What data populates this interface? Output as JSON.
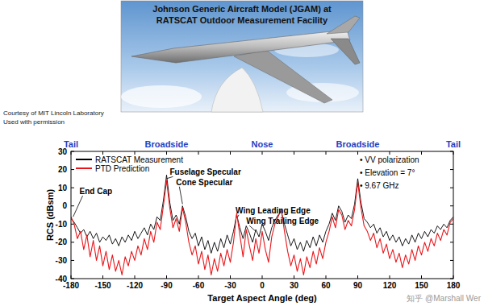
{
  "header": {
    "photo_title": [
      "Johnson Generic Aircraft Model (JGAM) at",
      "RATSCAT Outdoor Measurement Facility"
    ],
    "credit": [
      "Courtesy of MIT Lincoln Laboratory",
      "Used with permission"
    ],
    "watermark": "知乎 @Marshall Wer"
  },
  "chart_data": {
    "type": "line",
    "x_label": "Target Aspect Angle (deg)",
    "y_label": "RCS (dBsm)",
    "xlim": [
      -180,
      180
    ],
    "xticks": [
      -180,
      -150,
      -120,
      -90,
      -60,
      -30,
      0,
      30,
      60,
      90,
      120,
      150,
      180
    ],
    "ylim": [
      -40,
      30
    ],
    "yticks": [
      -40,
      -30,
      -20,
      -10,
      0,
      10,
      20,
      30
    ],
    "grid": false,
    "legend": "upper left",
    "aspect_labels": [
      {
        "x": -180,
        "text": "Tail"
      },
      {
        "x": -90,
        "text": "Broadside"
      },
      {
        "x": 0,
        "text": "Nose"
      },
      {
        "x": 90,
        "text": "Broadside"
      },
      {
        "x": 180,
        "text": "Tail"
      }
    ],
    "notes": [
      "• VV polarization",
      "• Elevation = 7°",
      "• 9.67 GHz"
    ],
    "annotations": [
      {
        "text": "End Cap",
        "x": -172,
        "y": 6.5,
        "arrow_x": -178,
        "arrow_y": -6
      },
      {
        "text": "Fuselage Specular",
        "x": -87,
        "y": 17,
        "arrow_x": -90,
        "arrow_y": 15
      },
      {
        "text": "Cone Specular",
        "x": -81,
        "y": 11.5,
        "arrow_x": -75,
        "arrow_y": 1
      },
      {
        "text": "Wing Leading Edge",
        "x": -25,
        "y": -4,
        "arrow_x": -23,
        "arrow_y": -6
      },
      {
        "text": "Wing Trailing Edge",
        "x": -15,
        "y": -10,
        "arrow_x": -6,
        "arrow_y": -14
      }
    ],
    "x": [
      -180,
      -177,
      -174,
      -171,
      -168,
      -165,
      -162,
      -159,
      -156,
      -153,
      -150,
      -147,
      -144,
      -141,
      -138,
      -135,
      -132,
      -129,
      -126,
      -123,
      -120,
      -117,
      -114,
      -111,
      -108,
      -105,
      -102,
      -99,
      -96,
      -93,
      -90,
      -87,
      -84,
      -81,
      -78,
      -75,
      -72,
      -69,
      -66,
      -63,
      -60,
      -57,
      -54,
      -51,
      -48,
      -45,
      -42,
      -39,
      -36,
      -33,
      -30,
      -27,
      -24,
      -21,
      -18,
      -15,
      -12,
      -9,
      -6,
      -3,
      0,
      3,
      6,
      9,
      12,
      15,
      18,
      21,
      24,
      27,
      30,
      33,
      36,
      39,
      42,
      45,
      48,
      51,
      54,
      57,
      60,
      63,
      66,
      69,
      72,
      75,
      78,
      81,
      84,
      87,
      90,
      93,
      96,
      99,
      102,
      105,
      108,
      111,
      114,
      117,
      120,
      123,
      126,
      129,
      132,
      135,
      138,
      141,
      144,
      147,
      150,
      153,
      156,
      159,
      162,
      165,
      168,
      171,
      174,
      177,
      180
    ],
    "series": [
      {
        "name": "RATSCAT Measurement",
        "color": "#000000",
        "values": [
          -7,
          -9,
          -12,
          -15,
          -13,
          -17,
          -14,
          -18,
          -15,
          -20,
          -17,
          -19,
          -16,
          -21,
          -18,
          -22,
          -17,
          -20,
          -16,
          -19,
          -14,
          -18,
          -15,
          -12,
          -16,
          -10,
          -13,
          -6,
          -8,
          3,
          17,
          2,
          -8,
          -5,
          -10,
          0,
          -6,
          -14,
          -18,
          -15,
          -22,
          -17,
          -24,
          -19,
          -26,
          -20,
          -25,
          -18,
          -23,
          -16,
          -21,
          -14,
          -5,
          -12,
          -18,
          -11,
          -15,
          -20,
          -13,
          -17,
          -10,
          -14,
          -19,
          -12,
          -8,
          -5,
          -3,
          -10,
          -16,
          -22,
          -18,
          -24,
          -20,
          -25,
          -19,
          -23,
          -17,
          -22,
          -16,
          -20,
          -14,
          -10,
          -4,
          -8,
          0,
          -3,
          -9,
          -5,
          -7,
          1,
          15,
          2,
          -7,
          -9,
          -12,
          -10,
          -15,
          -12,
          -17,
          -14,
          -19,
          -16,
          -20,
          -17,
          -22,
          -18,
          -21,
          -16,
          -20,
          -15,
          -18,
          -14,
          -17,
          -13,
          -15,
          -11,
          -13,
          -10,
          -12,
          -8,
          -6
        ]
      },
      {
        "name": "PTD Prediction",
        "color": "#e8161b",
        "values": [
          -6,
          -10,
          -18,
          -14,
          -24,
          -16,
          -28,
          -19,
          -30,
          -22,
          -33,
          -25,
          -35,
          -27,
          -36,
          -30,
          -38,
          -28,
          -33,
          -25,
          -30,
          -22,
          -27,
          -18,
          -24,
          -14,
          -20,
          -9,
          -13,
          0,
          14,
          -1,
          -12,
          -7,
          -14,
          -1,
          -9,
          -20,
          -27,
          -22,
          -32,
          -25,
          -35,
          -27,
          -38,
          -29,
          -36,
          -26,
          -33,
          -24,
          -31,
          -20,
          -4,
          -16,
          -28,
          -13,
          -22,
          -30,
          -18,
          -26,
          -14,
          -24,
          -31,
          -17,
          -10,
          -6,
          -2,
          -14,
          -25,
          -33,
          -27,
          -36,
          -29,
          -38,
          -28,
          -34,
          -25,
          -32,
          -23,
          -29,
          -20,
          -14,
          -6,
          -12,
          -2,
          -5,
          -13,
          -8,
          -11,
          -2,
          13,
          -1,
          -11,
          -14,
          -19,
          -15,
          -23,
          -18,
          -26,
          -21,
          -29,
          -24,
          -31,
          -26,
          -34,
          -27,
          -32,
          -24,
          -30,
          -22,
          -27,
          -20,
          -25,
          -18,
          -22,
          -15,
          -19,
          -13,
          -16,
          -9,
          -7
        ]
      }
    ]
  }
}
